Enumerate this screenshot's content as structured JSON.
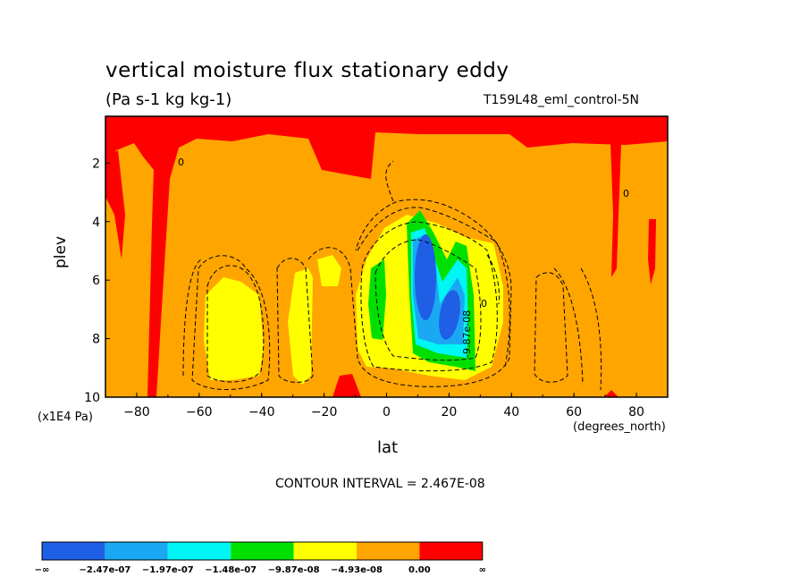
{
  "chart_data": {
    "type": "heatmap",
    "title": "vertical moisture flux stationary eddy",
    "subtitle": "(Pa s-1 kg kg-1)",
    "run_label": "T159L48_eml_control-5N",
    "xlabel": "lat",
    "x_units": "(degrees_north)",
    "ylabel": "plev",
    "y_units": "(x1E4 Pa)",
    "xlim": [
      -90,
      90
    ],
    "ylim": [
      10,
      0.4
    ],
    "x_ticks": [
      -80,
      -60,
      -40,
      -20,
      0,
      20,
      40,
      60,
      80
    ],
    "y_ticks": [
      2,
      4,
      6,
      8,
      10
    ],
    "contour_interval_text": "CONTOUR INTERVAL = 2.467E-08",
    "inline_contour_labels": [
      "0",
      "-9.87e-08",
      "0",
      "0"
    ],
    "colorbar": {
      "colors": [
        "#1f5fe6",
        "#1aa8f2",
        "#00f5f5",
        "#00e000",
        "#ffff00",
        "#ffa500",
        "#ff0000"
      ],
      "labels": [
        "-∞",
        "-2.47e-07",
        "-1.97e-07",
        "-1.48e-07",
        "-9.87e-08",
        "-4.93e-08",
        "0.00",
        "∞"
      ]
    },
    "grid": false
  }
}
